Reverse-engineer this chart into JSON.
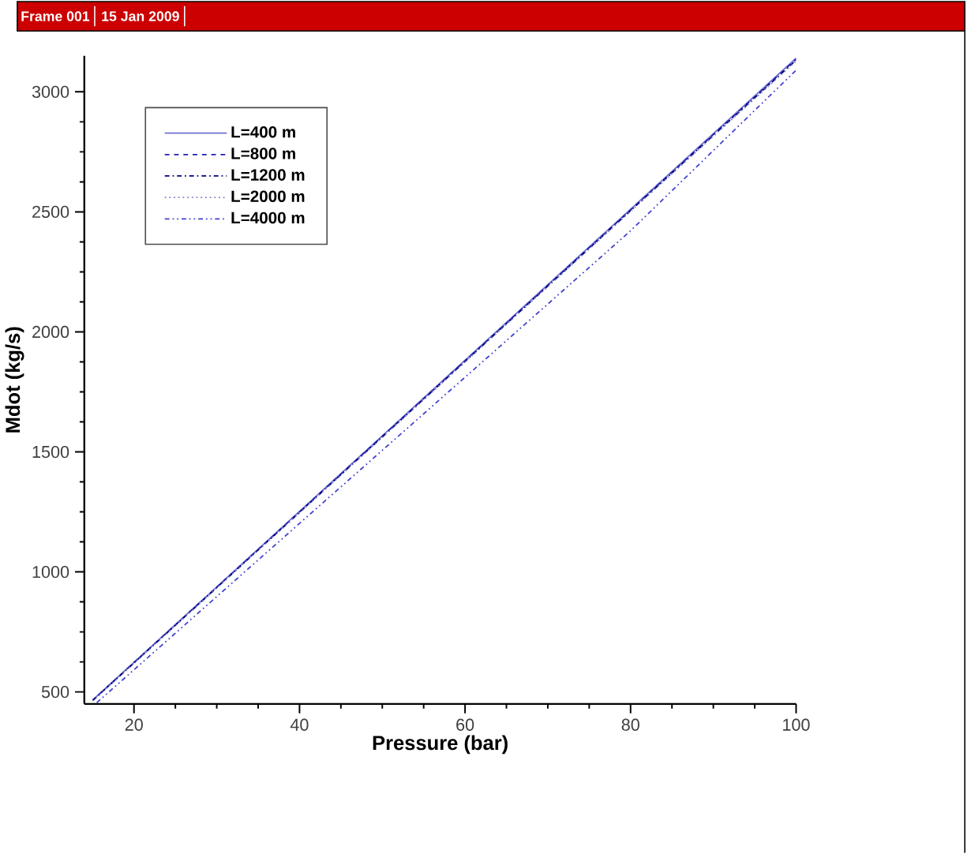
{
  "chart_data": {
    "type": "line",
    "xlabel": "Pressure (bar)",
    "ylabel": "Mdot (kg/s)",
    "annotations": [
      "Frame 001",
      "15 Jan 2009"
    ],
    "xlim": [
      14,
      100
    ],
    "ylim": [
      450,
      3150
    ],
    "xticks": [
      20,
      40,
      60,
      80,
      100
    ],
    "yticks": [
      500,
      1000,
      1500,
      2000,
      2500,
      3000
    ],
    "grid": false,
    "legend": "top left",
    "series": [
      {
        "name": "L=400 m",
        "color": "#7070d0",
        "line_style": "solid",
        "x": [
          15,
          40,
          60,
          80,
          100
        ],
        "values": [
          466,
          1252,
          1882,
          2511,
          3140
        ]
      },
      {
        "name": "L=800 m",
        "color": "#2020b0",
        "line_style": "dashed",
        "x": [
          15,
          40,
          60,
          80,
          100
        ],
        "values": [
          465,
          1250,
          1879,
          2508,
          3136
        ]
      },
      {
        "name": "L=1200 m",
        "color": "#000080",
        "line_style": "dashdot",
        "x": [
          15,
          40,
          60,
          80,
          100
        ],
        "values": [
          464,
          1248,
          1877,
          2505,
          3132
        ]
      },
      {
        "name": "L=2000 m",
        "color": "#8080c0",
        "line_style": "dotted",
        "x": [
          15,
          40,
          60,
          80,
          100
        ],
        "values": [
          462,
          1246,
          1874,
          2502,
          3128
        ]
      },
      {
        "name": "L=4000 m",
        "color": "#4040d0",
        "line_style": "dashdotdot",
        "x": [
          15.5,
          40,
          60,
          80,
          100
        ],
        "values": [
          455,
          1202,
          1811,
          2421,
          3090
        ]
      }
    ]
  }
}
